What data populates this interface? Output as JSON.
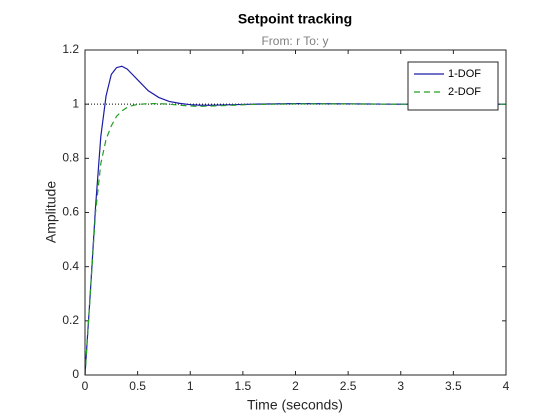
{
  "chart_data": {
    "type": "line",
    "title": "Setpoint tracking",
    "subtitle": "From: r  To: y",
    "xlabel": "Time (seconds)",
    "ylabel": "Amplitude",
    "x": [
      0,
      0.05,
      0.1,
      0.15,
      0.2,
      0.25,
      0.3,
      0.35,
      0.4,
      0.45,
      0.5,
      0.6,
      0.7,
      0.8,
      0.9,
      1.0,
      1.1,
      1.2,
      1.4,
      1.6,
      1.8,
      2.0,
      2.5,
      3.0,
      3.5,
      4.0
    ],
    "series": [
      {
        "name": "1-DOF",
        "color": "#1c1ca8",
        "dash": false,
        "values": [
          0,
          0.3,
          0.62,
          0.88,
          1.03,
          1.11,
          1.135,
          1.14,
          1.13,
          1.11,
          1.09,
          1.05,
          1.025,
          1.01,
          1.003,
          0.998,
          0.996,
          0.996,
          0.998,
          1.0,
          1.001,
          1.002,
          1.001,
          1.0,
          1.0,
          1.0
        ]
      },
      {
        "name": "2-DOF",
        "color": "#22a022",
        "dash": true,
        "values": [
          0,
          0.3,
          0.6,
          0.78,
          0.87,
          0.92,
          0.955,
          0.975,
          0.988,
          0.995,
          0.999,
          1.002,
          1.002,
          1.0,
          0.996,
          0.993,
          0.992,
          0.993,
          0.996,
          0.999,
          1.0,
          1.001,
          1.001,
          1.0,
          1.0,
          1.0
        ]
      }
    ],
    "reference_line": 1,
    "xlim": [
      0,
      4
    ],
    "xticks": [
      0,
      0.5,
      1,
      1.5,
      2,
      2.5,
      3,
      3.5,
      4
    ],
    "ylim": [
      0,
      1.2
    ],
    "yticks": [
      0,
      0.2,
      0.4,
      0.6,
      0.8,
      1,
      1.2
    ],
    "grid": false,
    "legend": "top-right"
  }
}
